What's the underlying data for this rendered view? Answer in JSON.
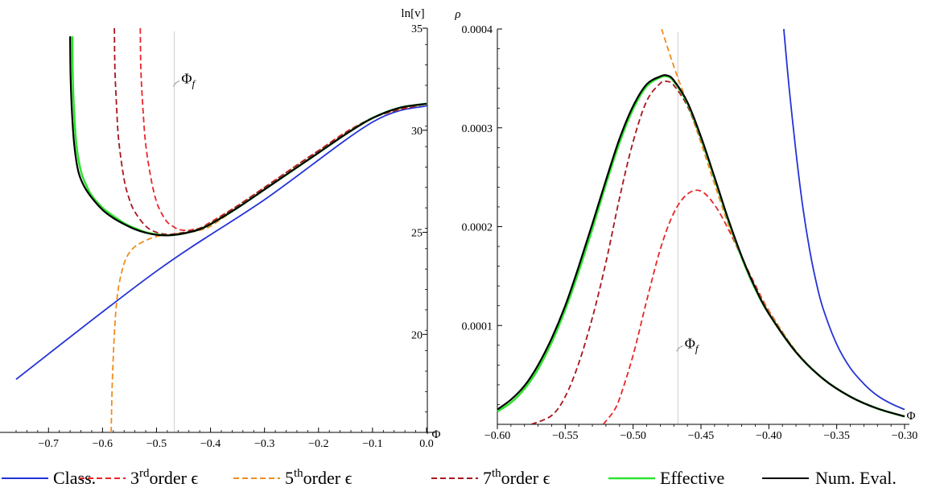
{
  "chart_data": [
    {
      "type": "line",
      "xlabel": "Φ",
      "ylabel": "ln[v]",
      "xlim": [
        -0.76,
        0.0
      ],
      "ylim": [
        15.2,
        35.0
      ],
      "xticks": [
        -0.7,
        -0.6,
        -0.5,
        -0.4,
        -0.3,
        -0.2,
        -0.1,
        0.0
      ],
      "xtick_labels": [
        "−0.7",
        "−0.6",
        "−0.5",
        "−0.4",
        "−0.3",
        "−0.2",
        "−0.1",
        "0.0"
      ],
      "yticks": [
        20,
        25,
        30,
        35
      ],
      "ytick_labels": [
        "20",
        "25",
        "30",
        "35"
      ],
      "vline": {
        "x": -0.467,
        "label": "Φ_f"
      },
      "annotation": {
        "text": "Φ",
        "subscript": "f",
        "x": -0.454,
        "y": 32.3
      },
      "grid": false,
      "series": [
        {
          "name": "Class.",
          "color": "#2433d6",
          "dash": "solid",
          "x": [
            -0.76,
            -0.5,
            -0.3,
            -0.1,
            0.0
          ],
          "y": [
            17.8,
            23.1,
            26.6,
            30.4,
            31.2
          ]
        },
        {
          "name": "3rd order ε",
          "color": "#e8262a",
          "dash": "dashed",
          "x": [
            -0.53,
            -0.529,
            -0.525,
            -0.52,
            -0.51,
            -0.5,
            -0.49,
            -0.48,
            -0.47,
            -0.46,
            -0.45,
            -0.44,
            -0.43,
            -0.42,
            -0.4,
            -0.35,
            -0.3,
            -0.25,
            -0.2,
            -0.15,
            -0.1,
            -0.05,
            0.0
          ],
          "y": [
            35.0,
            33.0,
            31.0,
            29.3,
            27.6,
            26.5,
            25.9,
            25.5,
            25.3,
            25.15,
            25.1,
            25.1,
            25.15,
            25.2,
            25.5,
            26.3,
            27.2,
            28.1,
            29.0,
            29.9,
            30.6,
            31.1,
            31.3
          ]
        },
        {
          "name": "5th order ε",
          "color": "#f08c1e",
          "dash": "dashed",
          "x": [
            -0.584,
            -0.582,
            -0.578,
            -0.573,
            -0.565,
            -0.555,
            -0.54,
            -0.52,
            -0.5,
            -0.48,
            -0.46,
            -0.44,
            -0.42,
            -0.4,
            -0.35,
            -0.3,
            -0.2,
            -0.1,
            0.0
          ],
          "y": [
            15.2,
            17.5,
            20.0,
            21.8,
            23.0,
            23.8,
            24.3,
            24.6,
            24.8,
            24.85,
            24.95,
            25.0,
            25.1,
            25.3,
            26.2,
            27.1,
            28.9,
            30.6,
            31.3
          ]
        },
        {
          "name": "7th order ε",
          "color": "#a8151d",
          "dash": "dashed",
          "x": [
            -0.578,
            -0.577,
            -0.574,
            -0.57,
            -0.56,
            -0.55,
            -0.54,
            -0.52,
            -0.5,
            -0.48,
            -0.46,
            -0.44,
            -0.42,
            -0.4,
            -0.35,
            -0.3,
            -0.2,
            -0.1,
            0.0
          ],
          "y": [
            35.0,
            33.0,
            31.2,
            29.5,
            27.6,
            26.6,
            26.0,
            25.3,
            25.0,
            24.9,
            24.95,
            25.05,
            25.2,
            25.45,
            26.3,
            27.2,
            29.0,
            30.6,
            31.3
          ]
        },
        {
          "name": "Effective",
          "color": "#2ee32e",
          "dash": "solid",
          "x": [
            -0.656,
            -0.655,
            -0.652,
            -0.648,
            -0.64,
            -0.63,
            -0.62,
            -0.6,
            -0.58,
            -0.56,
            -0.54,
            -0.52,
            -0.5,
            -0.48,
            -0.46,
            -0.44,
            -0.42,
            -0.4,
            -0.35,
            -0.3,
            -0.25,
            -0.2,
            -0.15,
            -0.1,
            -0.05,
            0.0
          ],
          "y": [
            34.6,
            32.5,
            30.6,
            29.2,
            28.0,
            27.3,
            26.8,
            26.2,
            25.8,
            25.45,
            25.2,
            25.0,
            24.9,
            24.85,
            24.9,
            25.0,
            25.15,
            25.4,
            26.2,
            27.1,
            28.0,
            28.9,
            29.8,
            30.6,
            31.1,
            31.3
          ]
        },
        {
          "name": "Num. Eval.",
          "color": "#000000",
          "dash": "solid",
          "x": [
            -0.66,
            -0.659,
            -0.656,
            -0.652,
            -0.645,
            -0.635,
            -0.62,
            -0.6,
            -0.58,
            -0.56,
            -0.54,
            -0.52,
            -0.5,
            -0.48,
            -0.46,
            -0.44,
            -0.42,
            -0.4,
            -0.35,
            -0.3,
            -0.25,
            -0.2,
            -0.15,
            -0.1,
            -0.05,
            0.0
          ],
          "y": [
            34.6,
            32.5,
            30.6,
            29.2,
            28.0,
            27.3,
            26.7,
            26.1,
            25.7,
            25.4,
            25.15,
            24.98,
            24.88,
            24.85,
            24.9,
            25.0,
            25.15,
            25.4,
            26.2,
            27.1,
            28.0,
            28.9,
            29.8,
            30.6,
            31.1,
            31.3
          ]
        }
      ]
    },
    {
      "type": "line",
      "xlabel": "Φ",
      "ylabel": "ρ",
      "xlim": [
        -0.6,
        -0.3
      ],
      "ylim": [
        0.0,
        0.0004
      ],
      "xticks": [
        -0.6,
        -0.55,
        -0.5,
        -0.45,
        -0.4,
        -0.35,
        -0.3
      ],
      "xtick_labels": [
        "−0.60",
        "−0.55",
        "−0.50",
        "−0.45",
        "−0.40",
        "−0.35",
        "−0.30"
      ],
      "yticks": [
        0.0001,
        0.0002,
        0.0003,
        0.0004
      ],
      "ytick_labels": [
        "0.0001",
        "0.0002",
        "0.0003",
        "0.0004"
      ],
      "vline": {
        "x": -0.467,
        "label": "Φ_f"
      },
      "annotation": {
        "text": "Φ",
        "subscript": "f",
        "x": -0.462,
        "y": 7.7e-05
      },
      "grid": false,
      "series": [
        {
          "name": "Class.",
          "color": "#2433d6",
          "dash": "solid",
          "x": [
            -0.389,
            -0.385,
            -0.38,
            -0.375,
            -0.37,
            -0.365,
            -0.36,
            -0.35,
            -0.34,
            -0.33,
            -0.32,
            -0.31,
            -0.3
          ],
          "y": [
            0.0004,
            0.00034,
            0.000275,
            0.00022,
            0.000177,
            0.000143,
            0.000117,
            8.1e-05,
            5.7e-05,
            4.1e-05,
            2.9e-05,
            2.1e-05,
            1.5e-05
          ]
        },
        {
          "name": "3rd order ε",
          "color": "#e8262a",
          "dash": "dashed",
          "x": [
            -0.522,
            -0.515,
            -0.51,
            -0.5,
            -0.49,
            -0.48,
            -0.47,
            -0.46,
            -0.45,
            -0.44,
            -0.43,
            -0.42,
            -0.41,
            -0.4,
            -0.38,
            -0.36,
            -0.34,
            -0.32,
            -0.3
          ],
          "y": [
            0.0,
            1.2e-05,
            2.6e-05,
            7e-05,
            0.000125,
            0.000177,
            0.000214,
            0.000233,
            0.000236,
            0.000222,
            0.000198,
            0.000169,
            0.000141,
            0.000115,
            7.4e-05,
            4.6e-05,
            2.8e-05,
            1.6e-05,
            8e-06
          ]
        },
        {
          "name": "5th order ε",
          "color": "#f08c1e",
          "dash": "dashed",
          "x": [
            -0.479,
            -0.475,
            -0.47,
            -0.465,
            -0.46,
            -0.455,
            -0.45,
            -0.445,
            -0.44,
            -0.43,
            -0.42,
            -0.41,
            -0.4,
            -0.38,
            -0.36,
            -0.34,
            -0.32,
            -0.3
          ],
          "y": [
            0.0004,
            0.000383,
            0.000362,
            0.000343,
            0.000325,
            0.000305,
            0.000285,
            0.000264,
            0.000243,
            0.000203,
            0.000169,
            0.000139,
            0.000114,
            7.4e-05,
            4.6e-05,
            2.8e-05,
            1.6e-05,
            8e-06
          ]
        },
        {
          "name": "7th order ε",
          "color": "#a8151d",
          "dash": "dashed",
          "x": [
            -0.575,
            -0.56,
            -0.55,
            -0.54,
            -0.53,
            -0.52,
            -0.51,
            -0.5,
            -0.49,
            -0.48,
            -0.475,
            -0.47,
            -0.46,
            -0.45,
            -0.44,
            -0.43,
            -0.42,
            -0.41,
            -0.4,
            -0.38,
            -0.36,
            -0.34,
            -0.32,
            -0.3
          ],
          "y": [
            0.0,
            9e-06,
            2.8e-05,
            6.2e-05,
            0.000108,
            0.000164,
            0.000229,
            0.000286,
            0.000327,
            0.000345,
            0.000347,
            0.000343,
            0.000322,
            0.000288,
            0.000248,
            0.000206,
            0.000168,
            0.000137,
            0.000112,
            7.3e-05,
            4.6e-05,
            2.8e-05,
            1.6e-05,
            8e-06
          ]
        },
        {
          "name": "Effective",
          "color": "#2ee32e",
          "dash": "solid",
          "x": [
            -0.6,
            -0.59,
            -0.58,
            -0.57,
            -0.56,
            -0.55,
            -0.54,
            -0.53,
            -0.52,
            -0.51,
            -0.5,
            -0.49,
            -0.48,
            -0.475,
            -0.47,
            -0.46,
            -0.45,
            -0.44,
            -0.43,
            -0.42,
            -0.41,
            -0.4,
            -0.38,
            -0.36,
            -0.34,
            -0.32,
            -0.3
          ],
          "y": [
            1.3e-05,
            2.2e-05,
            3.6e-05,
            5.6e-05,
            8.3e-05,
            0.000116,
            0.000155,
            0.000198,
            0.000243,
            0.000285,
            0.000319,
            0.000342,
            0.000351,
            0.000352,
            0.000347,
            0.000325,
            0.00029,
            0.000249,
            0.000207,
            0.000169,
            0.000137,
            0.000112,
            7.3e-05,
            4.6e-05,
            2.8e-05,
            1.6e-05,
            8e-06
          ]
        },
        {
          "name": "Num. Eval.",
          "color": "#000000",
          "dash": "solid",
          "x": [
            -0.6,
            -0.59,
            -0.58,
            -0.57,
            -0.56,
            -0.55,
            -0.54,
            -0.53,
            -0.52,
            -0.51,
            -0.5,
            -0.49,
            -0.48,
            -0.475,
            -0.47,
            -0.46,
            -0.45,
            -0.44,
            -0.43,
            -0.42,
            -0.41,
            -0.4,
            -0.38,
            -0.36,
            -0.34,
            -0.32,
            -0.3
          ],
          "y": [
            1.5e-05,
            2.5e-05,
            3.9e-05,
            6e-05,
            8.7e-05,
            0.00012,
            0.00016,
            0.000203,
            0.000247,
            0.000289,
            0.000322,
            0.000344,
            0.000352,
            0.000353,
            0.000348,
            0.000326,
            0.000291,
            0.00025,
            0.000208,
            0.00017,
            0.000138,
            0.000112,
            7.3e-05,
            4.6e-05,
            2.8e-05,
            1.6e-05,
            8e-06
          ]
        }
      ]
    }
  ],
  "legend": {
    "placement": "bottom",
    "items": [
      {
        "label": "Class.",
        "color": "#2433d6",
        "dash": "solid"
      },
      {
        "label": "3rd order ε",
        "base": "3",
        "sup": "rd",
        "rest": "order ϵ",
        "color": "#e8262a",
        "dash": "dashed"
      },
      {
        "label": "5th order ε",
        "base": "5",
        "sup": "th",
        "rest": "order ϵ",
        "color": "#f08c1e",
        "dash": "dashed"
      },
      {
        "label": "7th order ε",
        "base": "7",
        "sup": "th",
        "rest": "order ϵ",
        "color": "#a8151d",
        "dash": "dashed"
      },
      {
        "label": "Effective",
        "color": "#2ee32e",
        "dash": "solid"
      },
      {
        "label": "Num. Eval.",
        "color": "#000000",
        "dash": "solid"
      }
    ]
  }
}
